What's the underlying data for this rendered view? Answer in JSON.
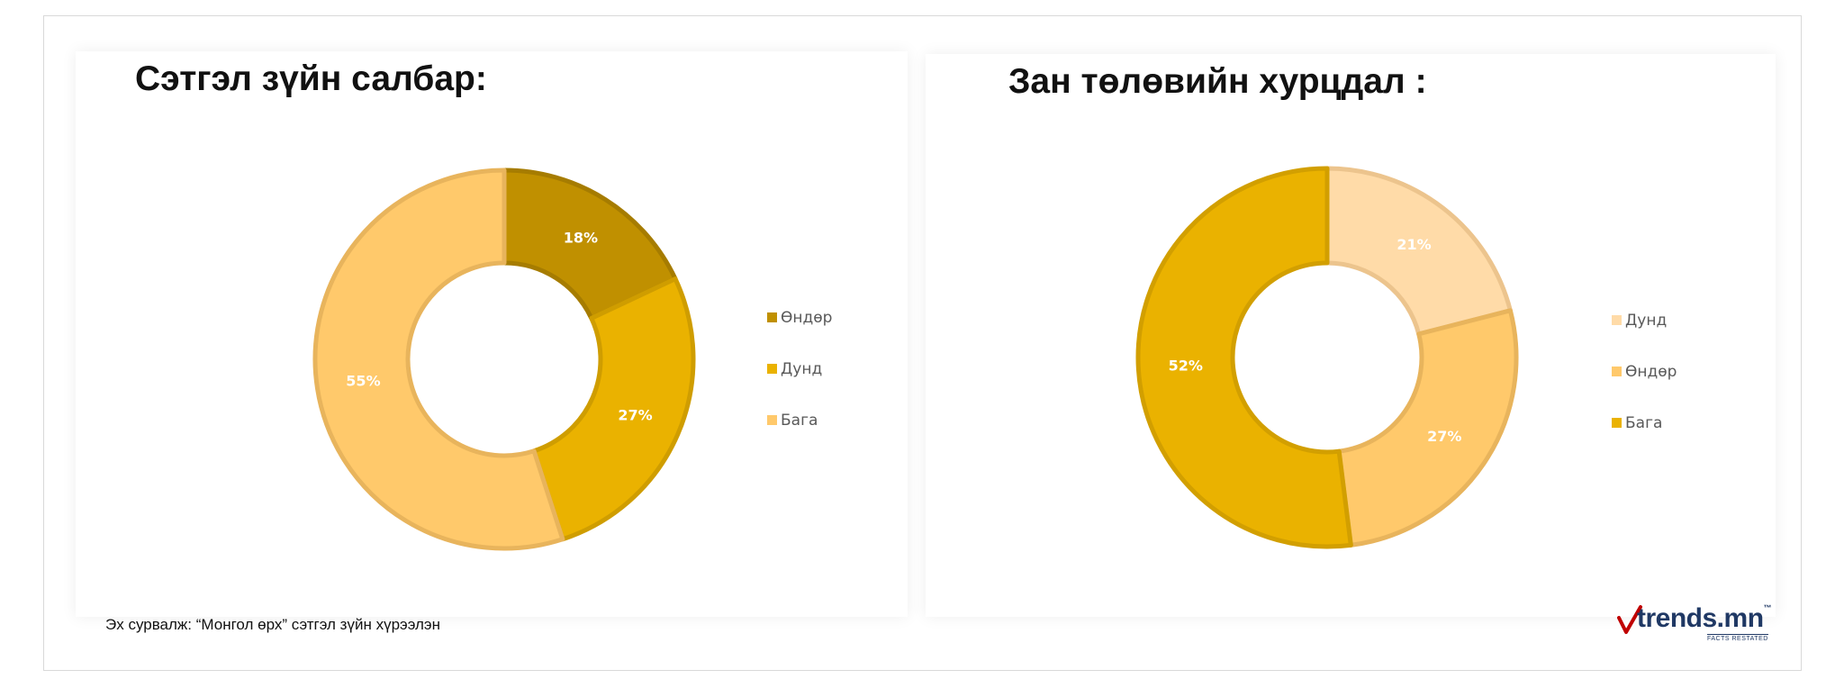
{
  "source_note": "Эх сурвалж: “Монгол өрх” сэтгэл зүйн хүрээлэн",
  "logo": {
    "text": "trends.mn",
    "trademark": "™",
    "tagline": "FACTS RESTATED",
    "accent": "#c00000"
  },
  "chart_data": [
    {
      "type": "pie",
      "title": "Сэтгэл зүйн салбар",
      "title_suffix": ":",
      "legend_position": "right",
      "slices": [
        {
          "name": "Өндөр",
          "value": 18,
          "label": "18%",
          "color": "#c09000",
          "stroke": "#a67c00"
        },
        {
          "name": "Дунд",
          "value": 27,
          "label": "27%",
          "color": "#eab200",
          "stroke": "#cf9d00"
        },
        {
          "name": "Бага",
          "value": 55,
          "label": "55%",
          "color": "#ffc96b",
          "stroke": "#e8b45c"
        }
      ]
    },
    {
      "type": "pie",
      "title": "Зан төлөвийн хурцдал",
      "title_suffix": ":",
      "legend_position": "right",
      "slices": [
        {
          "name": "Дунд",
          "value": 21,
          "label": "21%",
          "color": "#ffdba8",
          "stroke": "#ecc48d"
        },
        {
          "name": "Өндөр",
          "value": 27,
          "label": "27%",
          "color": "#ffc96b",
          "stroke": "#e8b45c"
        },
        {
          "name": "Бага",
          "value": 52,
          "label": "52%",
          "color": "#eab200",
          "stroke": "#d29f00"
        }
      ]
    }
  ]
}
